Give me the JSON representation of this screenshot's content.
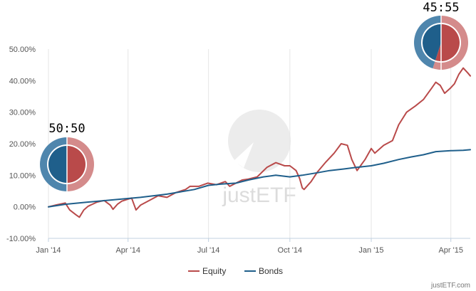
{
  "chart_data": {
    "type": "line",
    "title": "",
    "xlabel": "",
    "ylabel": "",
    "ylim": [
      -10,
      50
    ],
    "yticks": [
      -10,
      0,
      10,
      20,
      30,
      40,
      50
    ],
    "ytick_labels": [
      "-10.00%",
      "0.00%",
      "10.00%",
      "20.00%",
      "30.00%",
      "40.00%",
      "50.00%"
    ],
    "xlim": [
      "2014-01-01",
      "2015-04-23"
    ],
    "xticks": [
      "2014-01-01",
      "2014-04-01",
      "2014-07-01",
      "2014-10-01",
      "2015-01-01",
      "2015-04-01"
    ],
    "xtick_labels": [
      "Jan '14",
      "Apr '14",
      "Jul '14",
      "Oct '14",
      "Jan '15",
      "Apr '15"
    ],
    "grid": "vertical",
    "legend": "bottom-center",
    "series": [
      {
        "name": "Equity",
        "color": "#b94a4a",
        "points": [
          [
            "2014-01-01",
            0.0
          ],
          [
            "2014-01-10",
            0.6
          ],
          [
            "2014-01-20",
            1.2
          ],
          [
            "2014-01-25",
            -1.0
          ],
          [
            "2014-02-01",
            -2.5
          ],
          [
            "2014-02-05",
            -3.3
          ],
          [
            "2014-02-10",
            -1.0
          ],
          [
            "2014-02-15",
            0.2
          ],
          [
            "2014-02-25",
            1.5
          ],
          [
            "2014-03-05",
            2.0
          ],
          [
            "2014-03-12",
            0.5
          ],
          [
            "2014-03-15",
            -0.8
          ],
          [
            "2014-03-20",
            0.8
          ],
          [
            "2014-03-25",
            1.8
          ],
          [
            "2014-04-05",
            2.8
          ],
          [
            "2014-04-10",
            -1.0
          ],
          [
            "2014-04-15",
            0.5
          ],
          [
            "2014-04-25",
            2.0
          ],
          [
            "2014-05-05",
            3.5
          ],
          [
            "2014-05-15",
            3.0
          ],
          [
            "2014-05-25",
            4.5
          ],
          [
            "2014-06-05",
            5.5
          ],
          [
            "2014-06-10",
            6.5
          ],
          [
            "2014-06-20",
            6.5
          ],
          [
            "2014-06-30",
            7.5
          ],
          [
            "2014-07-10",
            7.0
          ],
          [
            "2014-07-20",
            8.0
          ],
          [
            "2014-07-25",
            6.5
          ],
          [
            "2014-08-01",
            7.5
          ],
          [
            "2014-08-08",
            8.5
          ],
          [
            "2014-08-15",
            8.8
          ],
          [
            "2014-08-25",
            9.5
          ],
          [
            "2014-09-05",
            12.5
          ],
          [
            "2014-09-15",
            14.0
          ],
          [
            "2014-09-25",
            13.0
          ],
          [
            "2014-10-01",
            13.0
          ],
          [
            "2014-10-08",
            11.5
          ],
          [
            "2014-10-12",
            9.0
          ],
          [
            "2014-10-15",
            6.0
          ],
          [
            "2014-10-17",
            5.5
          ],
          [
            "2014-10-25",
            8.0
          ],
          [
            "2014-11-01",
            11.0
          ],
          [
            "2014-11-10",
            14.0
          ],
          [
            "2014-11-20",
            17.0
          ],
          [
            "2014-11-28",
            20.0
          ],
          [
            "2014-12-05",
            19.5
          ],
          [
            "2014-12-10",
            15.0
          ],
          [
            "2014-12-16",
            11.5
          ],
          [
            "2014-12-25",
            15.0
          ],
          [
            "2015-01-01",
            18.5
          ],
          [
            "2015-01-05",
            17.0
          ],
          [
            "2015-01-15",
            19.5
          ],
          [
            "2015-01-25",
            21.0
          ],
          [
            "2015-02-01",
            26.0
          ],
          [
            "2015-02-10",
            30.0
          ],
          [
            "2015-02-20",
            32.0
          ],
          [
            "2015-03-01",
            34.0
          ],
          [
            "2015-03-10",
            37.5
          ],
          [
            "2015-03-15",
            39.5
          ],
          [
            "2015-03-20",
            38.5
          ],
          [
            "2015-03-25",
            36.0
          ],
          [
            "2015-03-31",
            37.5
          ],
          [
            "2015-04-05",
            39.0
          ],
          [
            "2015-04-10",
            42.0
          ],
          [
            "2015-04-15",
            44.0
          ],
          [
            "2015-04-20",
            42.5
          ],
          [
            "2015-04-23",
            41.5
          ]
        ]
      },
      {
        "name": "Bonds",
        "color": "#1f5f8b",
        "points": [
          [
            "2014-01-01",
            0.0
          ],
          [
            "2014-01-20",
            0.8
          ],
          [
            "2014-02-15",
            1.5
          ],
          [
            "2014-03-15",
            2.2
          ],
          [
            "2014-04-15",
            3.0
          ],
          [
            "2014-05-15",
            4.0
          ],
          [
            "2014-06-15",
            5.5
          ],
          [
            "2014-07-01",
            6.8
          ],
          [
            "2014-07-15",
            7.2
          ],
          [
            "2014-08-01",
            7.5
          ],
          [
            "2014-08-15",
            8.5
          ],
          [
            "2014-09-01",
            9.5
          ],
          [
            "2014-09-15",
            10.0
          ],
          [
            "2014-10-01",
            9.5
          ],
          [
            "2014-10-15",
            10.0
          ],
          [
            "2014-11-01",
            10.8
          ],
          [
            "2014-11-15",
            11.5
          ],
          [
            "2014-12-01",
            12.0
          ],
          [
            "2014-12-15",
            12.5
          ],
          [
            "2015-01-01",
            13.0
          ],
          [
            "2015-01-15",
            13.8
          ],
          [
            "2015-02-01",
            15.0
          ],
          [
            "2015-02-15",
            15.8
          ],
          [
            "2015-03-01",
            16.5
          ],
          [
            "2015-03-15",
            17.5
          ],
          [
            "2015-04-01",
            17.8
          ],
          [
            "2015-04-15",
            17.9
          ],
          [
            "2015-04-23",
            18.1
          ]
        ]
      }
    ]
  },
  "allocation_badges": [
    {
      "label": "50:50",
      "equity_share": 0.5,
      "bonds_share": 0.5
    },
    {
      "label": "45:55",
      "equity_share": 0.55,
      "bonds_share": 0.45
    }
  ],
  "watermark": {
    "text": "justETF"
  },
  "credit": {
    "text": "justETF.com"
  },
  "colors": {
    "equity": "#b94a4a",
    "equity_ring": "#d48b8b",
    "bonds": "#1f5f8b",
    "bonds_ring": "#4f86ad",
    "axis": "#c0d0e0",
    "grid": "#e6e6e6"
  }
}
